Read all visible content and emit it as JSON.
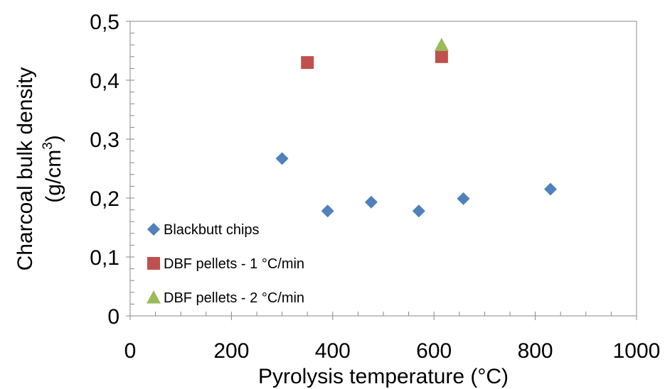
{
  "chart_data": {
    "type": "scatter",
    "xlabel": "Pyrolysis temperature (°C)",
    "ylabel": {
      "line1": "Charcoal bulk density",
      "line2_base": "(g/cm",
      "line2_sup": "3",
      "line2_end": ")"
    },
    "xlim": [
      0,
      1000
    ],
    "ylim": [
      0,
      0.5
    ],
    "x_ticks": [
      {
        "value": 0,
        "label": "0"
      },
      {
        "value": 200,
        "label": "200"
      },
      {
        "value": 400,
        "label": "400"
      },
      {
        "value": 600,
        "label": "600"
      },
      {
        "value": 800,
        "label": "800"
      },
      {
        "value": 1000,
        "label": "1000"
      }
    ],
    "y_ticks": [
      {
        "value": 0,
        "label": "0"
      },
      {
        "value": 0.1,
        "label": "0,1"
      },
      {
        "value": 0.2,
        "label": "0,2"
      },
      {
        "value": 0.3,
        "label": "0,3"
      },
      {
        "value": 0.4,
        "label": "0,4"
      },
      {
        "value": 0.5,
        "label": "0,5"
      }
    ],
    "x_minor_step": 50,
    "y_minor_step": 0.02,
    "grid": false,
    "legend_position": "bottom-left",
    "series": [
      {
        "name": "Blackbutt chips",
        "marker": "diamond",
        "color": "#4F81BD",
        "points": [
          {
            "x": 300,
            "y": 0.267
          },
          {
            "x": 390,
            "y": 0.178
          },
          {
            "x": 476,
            "y": 0.193
          },
          {
            "x": 570,
            "y": 0.178
          },
          {
            "x": 658,
            "y": 0.199
          },
          {
            "x": 830,
            "y": 0.215
          }
        ]
      },
      {
        "name": "DBF pellets - 1 °C/min",
        "marker": "square",
        "color": "#C0504D",
        "points": [
          {
            "x": 350,
            "y": 0.43
          },
          {
            "x": 615,
            "y": 0.44
          }
        ]
      },
      {
        "name": "DBF pellets - 2 °C/min",
        "marker": "triangle",
        "color": "#9BBB59",
        "points": [
          {
            "x": 615,
            "y": 0.46
          }
        ]
      }
    ]
  }
}
